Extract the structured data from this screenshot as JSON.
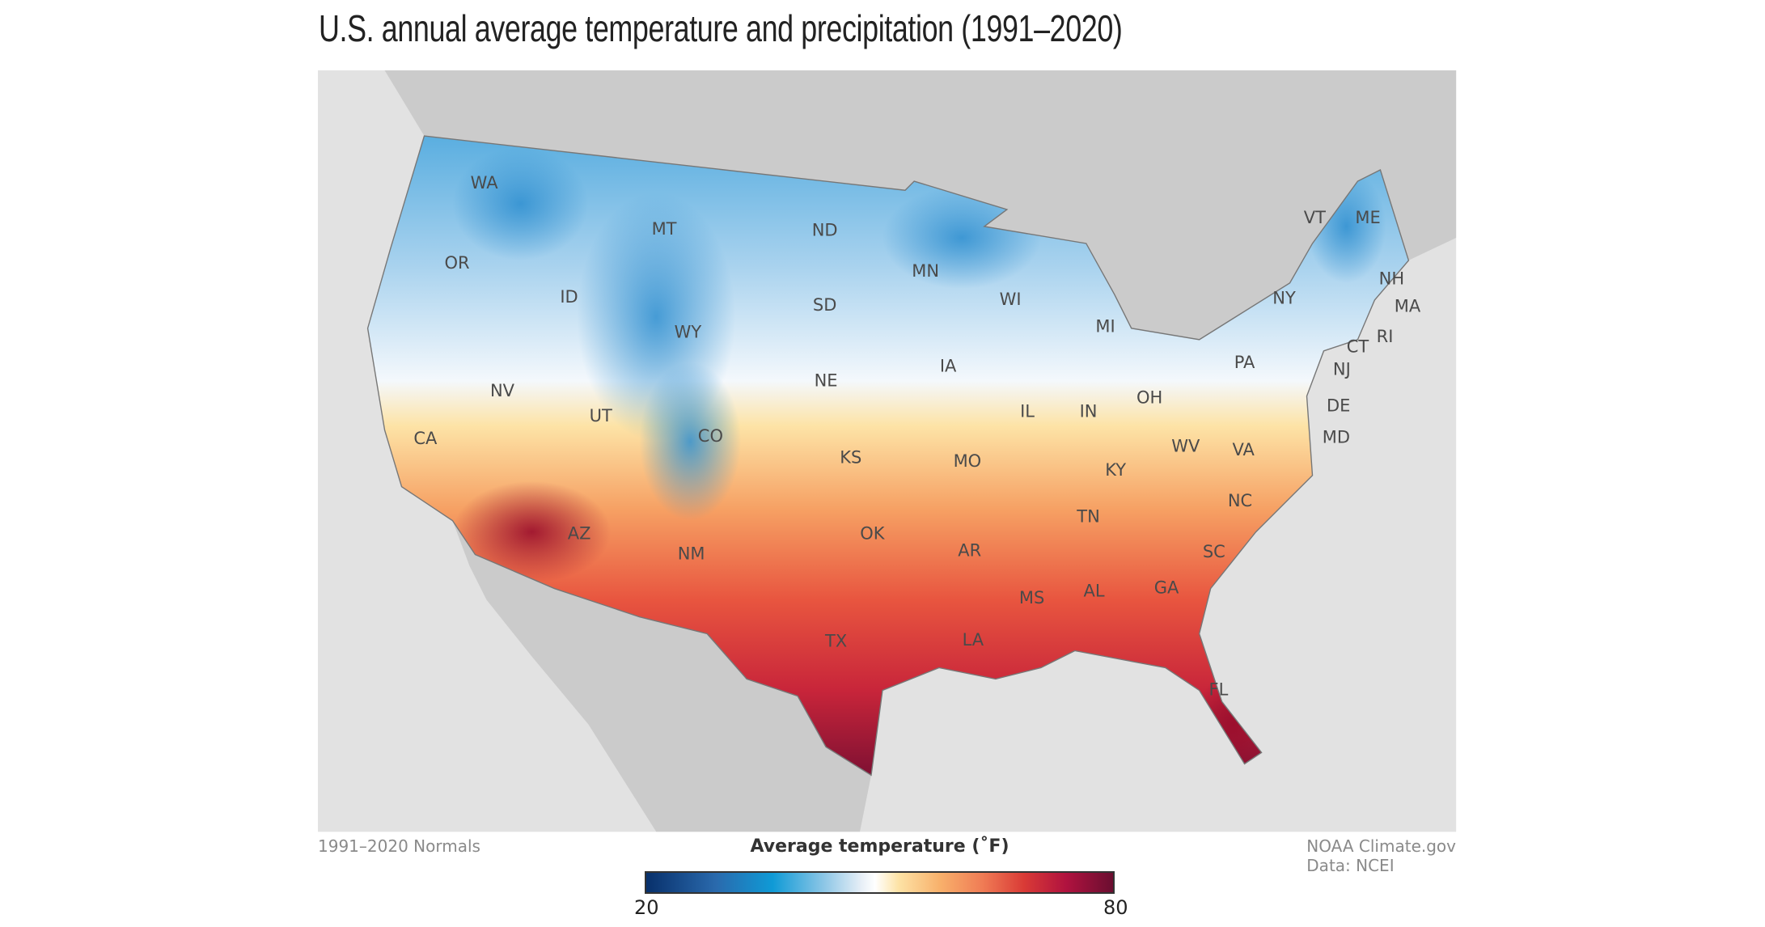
{
  "title": "U.S. annual average temperature and precipitation (1991–2020)",
  "map": {
    "state_labels": [
      "WA",
      "OR",
      "CA",
      "ID",
      "NV",
      "MT",
      "WY",
      "UT",
      "AZ",
      "CO",
      "NM",
      "ND",
      "SD",
      "NE",
      "KS",
      "OK",
      "TX",
      "MN",
      "IA",
      "MO",
      "AR",
      "LA",
      "WI",
      "IL",
      "MI",
      "IN",
      "OH",
      "KY",
      "TN",
      "MS",
      "AL",
      "GA",
      "FL",
      "SC",
      "NC",
      "VA",
      "WV",
      "PA",
      "NY",
      "VT",
      "ME",
      "NH",
      "MA",
      "RI",
      "CT",
      "NJ",
      "DE",
      "MD"
    ],
    "colors": {
      "ocean": "#e2e2e2",
      "land": "#cbcbcb",
      "border": "#777777"
    }
  },
  "legend": {
    "title": "Average temperature (˚F)",
    "min_label": "20",
    "max_label": "80",
    "range": [
      20,
      80
    ],
    "colors": [
      "#08306b",
      "#0f9ad6",
      "#ffffff",
      "#f8b06b",
      "#d93a36",
      "#6a0e30"
    ]
  },
  "footer": {
    "left": "1991–2020 Normals",
    "right_line1": "NOAA Climate.gov",
    "right_line2": "Data: NCEI"
  }
}
